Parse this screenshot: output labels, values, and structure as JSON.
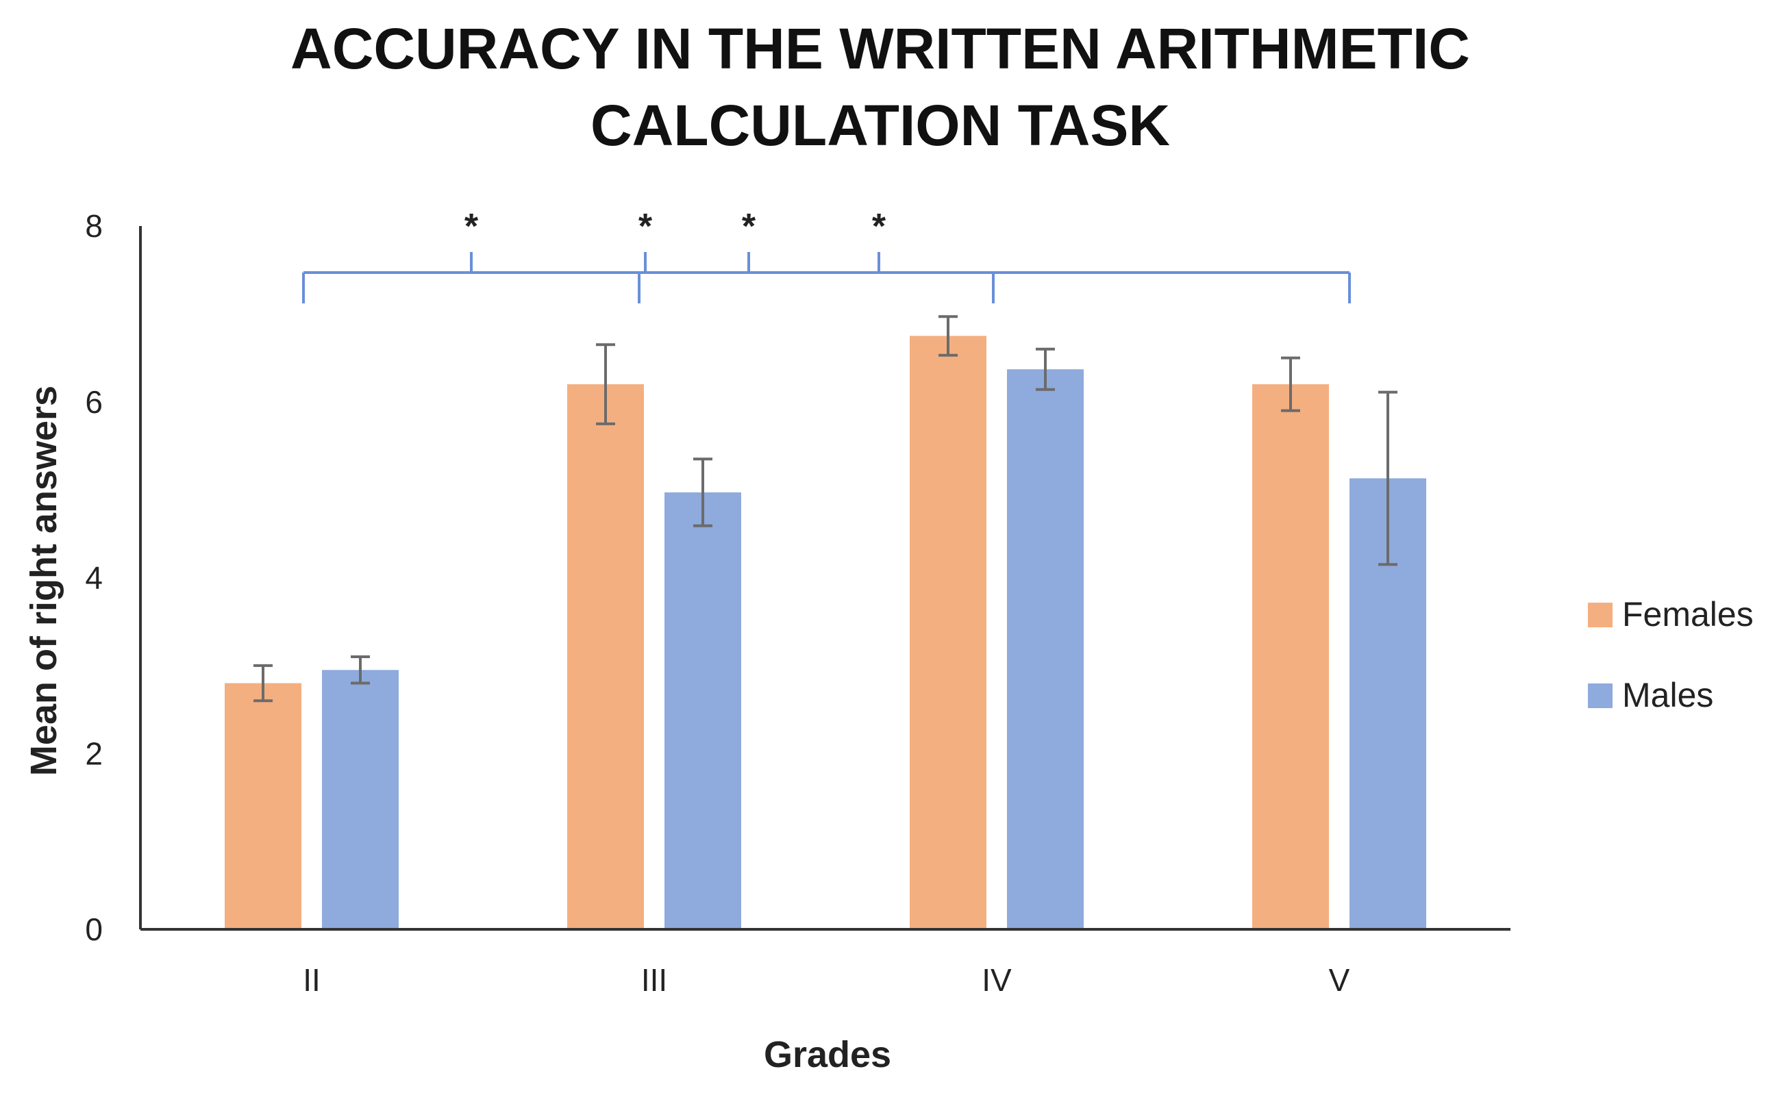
{
  "chart_data": {
    "type": "bar",
    "title_lines": [
      "ACCURACY IN THE WRITTEN ARITHMETIC",
      "CALCULATION TASK"
    ],
    "xlabel": "Grades",
    "ylabel": "Mean of right answers",
    "categories": [
      "II",
      "III",
      "IV",
      "V"
    ],
    "ylim": [
      0,
      8
    ],
    "yticks": [
      "0",
      "2",
      "4",
      "6",
      "8"
    ],
    "series": [
      {
        "name": "Females",
        "color": "#F4AF80",
        "values": [
          2.8,
          6.2,
          6.75,
          6.2
        ],
        "error": [
          0.2,
          0.45,
          0.22,
          0.3
        ]
      },
      {
        "name": "Males",
        "color": "#8FAADC",
        "values": [
          2.95,
          4.97,
          6.37,
          5.13
        ],
        "error": [
          0.15,
          0.38,
          0.23,
          0.98
        ]
      }
    ],
    "significance": {
      "color": "#6A8FD8",
      "marker": "*",
      "marks": [
        "*",
        "*",
        "*",
        "*"
      ],
      "brackets": [
        {
          "from": "II",
          "to": "III"
        },
        {
          "from": "II",
          "to": "IV"
        },
        {
          "from": "III",
          "to": "IV"
        },
        {
          "from": "III",
          "to": "V"
        }
      ]
    },
    "legend_position": "right",
    "grid": false
  }
}
